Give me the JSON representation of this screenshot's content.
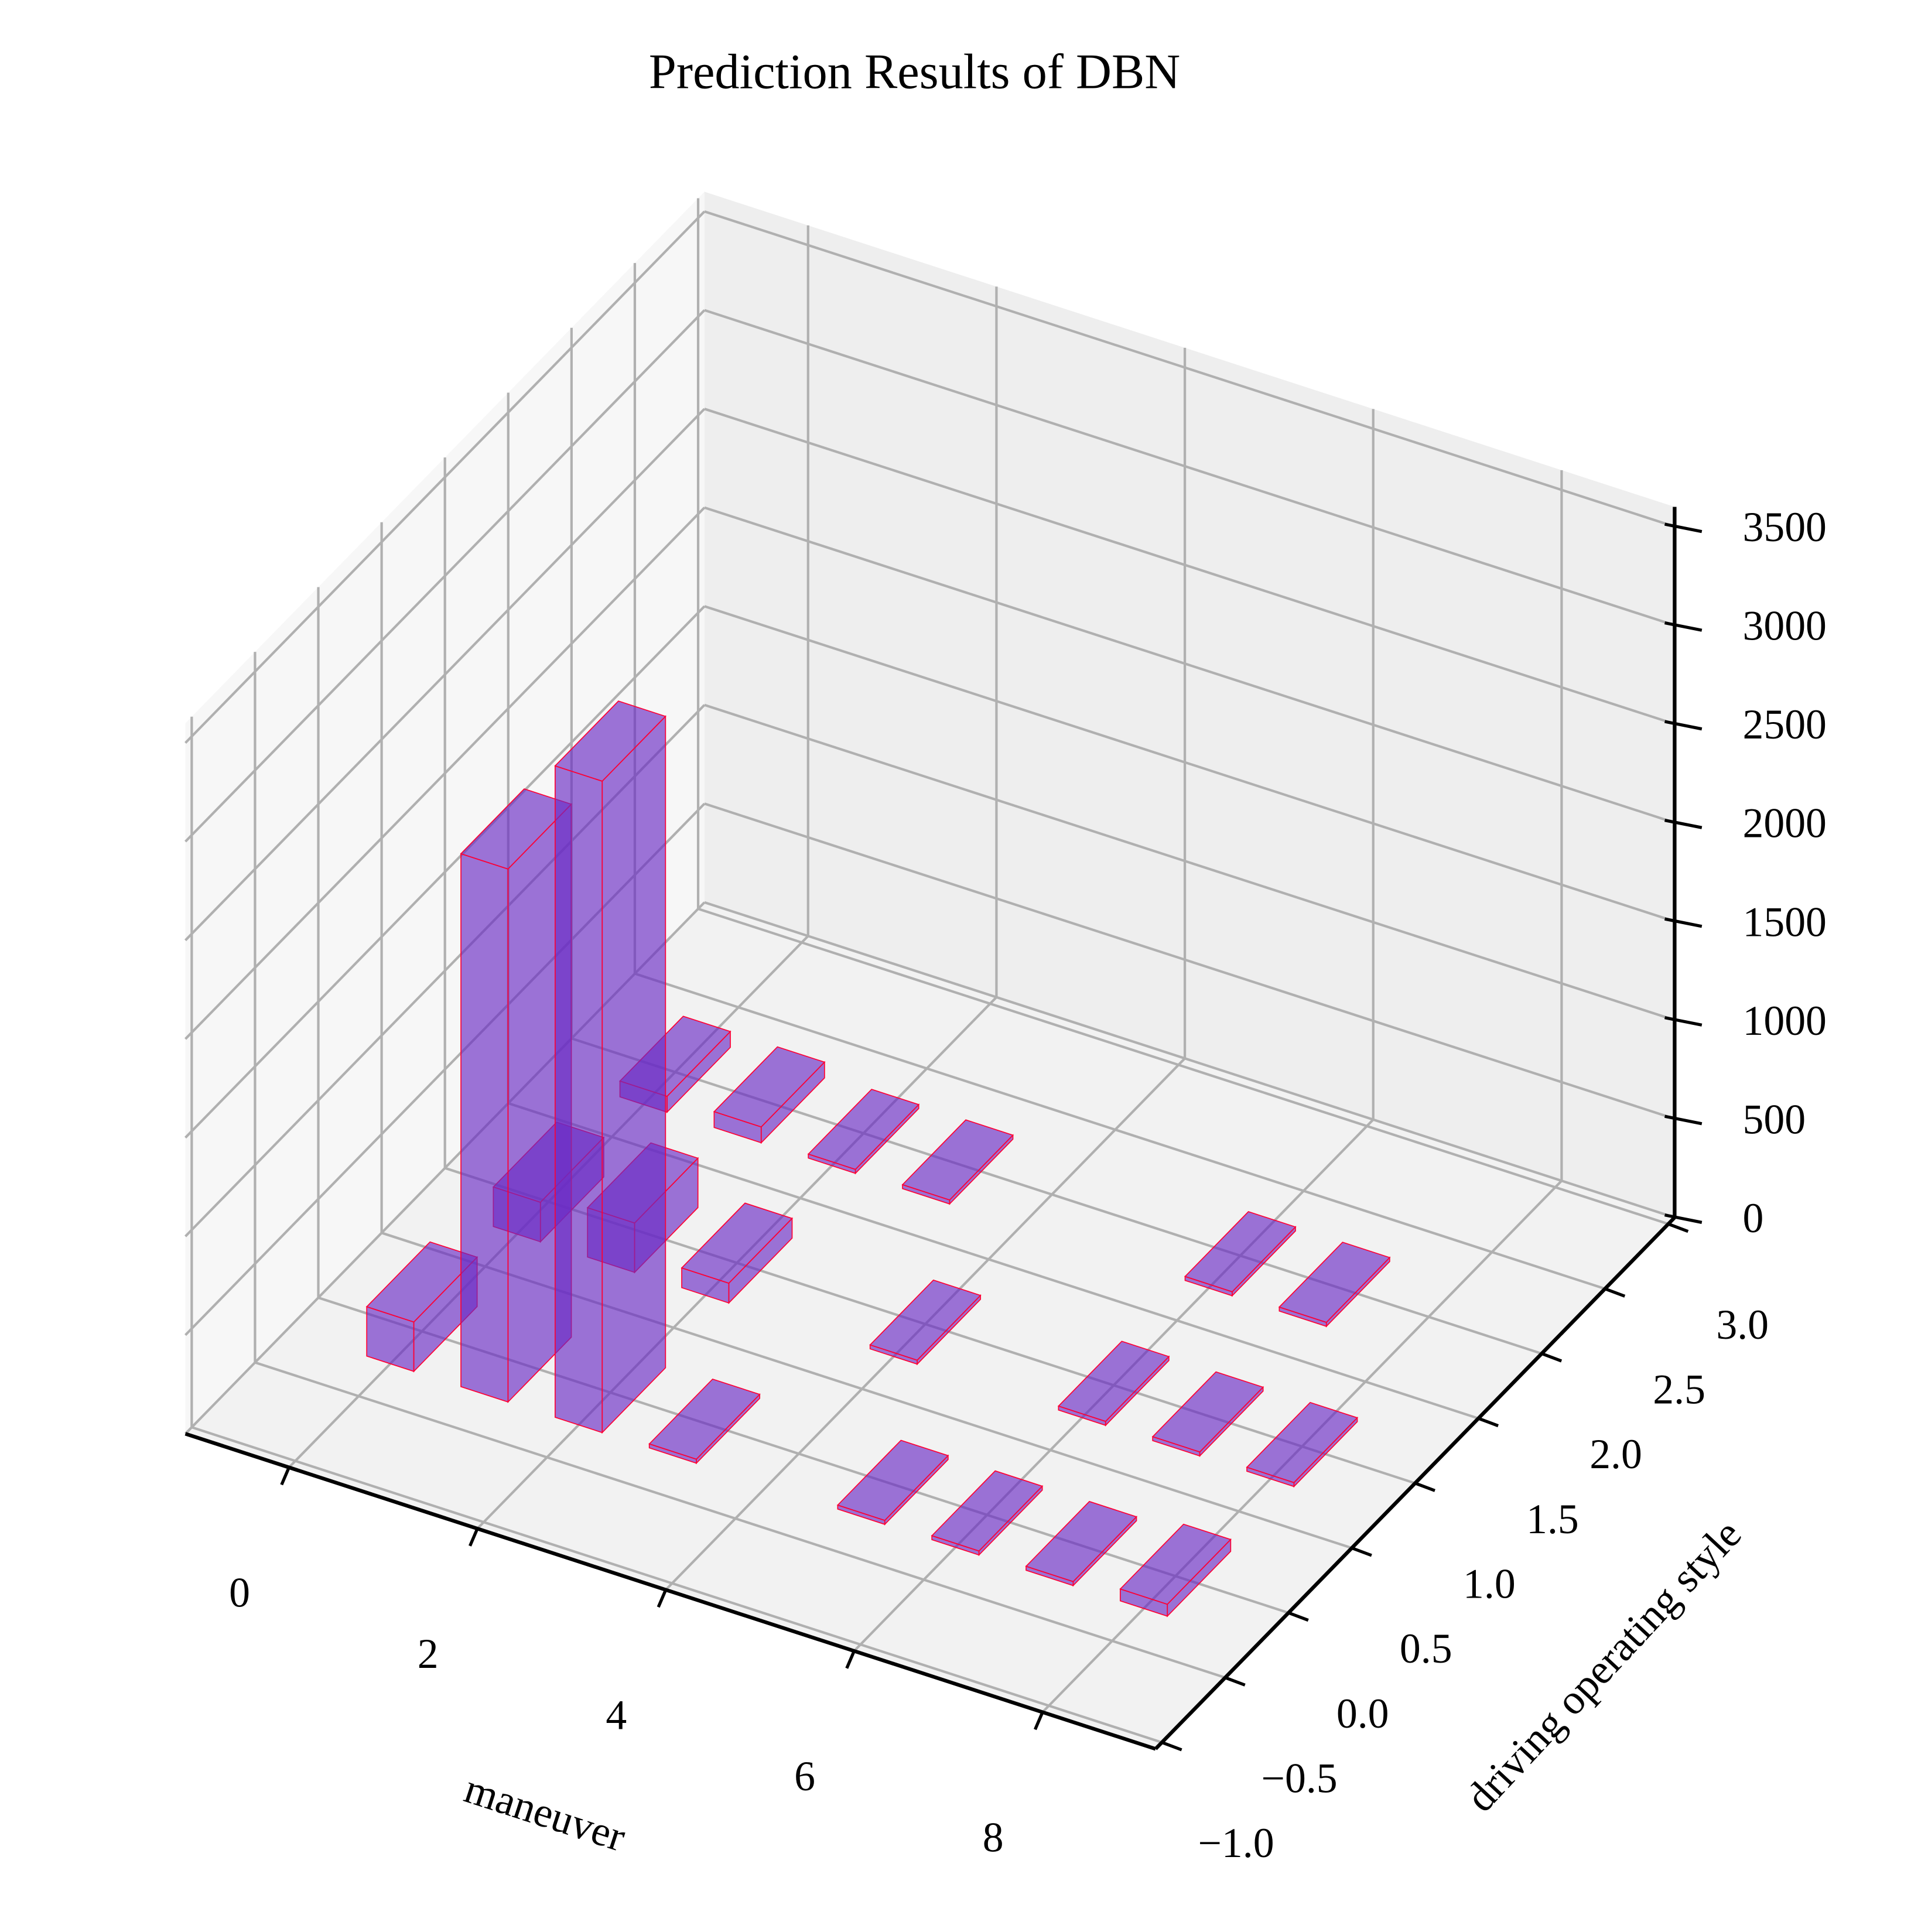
{
  "chart_data": {
    "type": "bar3d",
    "title": "Prediction Results of DBN",
    "xlabel": "maneuver",
    "ylabel": "driving operating style",
    "x": [
      0,
      1,
      2,
      3,
      5,
      6,
      7,
      8,
      0,
      1,
      2,
      4,
      6,
      7,
      8,
      0,
      1,
      2,
      3,
      6,
      7
    ],
    "y": [
      0,
      0,
      0,
      0,
      0,
      0,
      0,
      0,
      1,
      1,
      1,
      1,
      1,
      1,
      1,
      2,
      2,
      2,
      2,
      2,
      2
    ],
    "values": [
      250,
      2700,
      3300,
      20,
      20,
      20,
      20,
      60,
      200,
      250,
      100,
      20,
      20,
      20,
      20,
      80,
      80,
      20,
      20,
      20,
      20
    ],
    "color": "#6a2bc4",
    "edgecolor": "#ff0033",
    "xlim": [
      -1.1,
      9.2
    ],
    "ylim": [
      -1.05,
      3.05
    ],
    "zlim": [
      0,
      3600
    ],
    "xticks": [
      0,
      2,
      4,
      6,
      8
    ],
    "yticks": [
      {
        "value": -1,
        "label": "−1.0"
      },
      {
        "value": -0.5,
        "label": "−0.5"
      },
      {
        "value": 0,
        "label": "0.0"
      },
      0.5,
      {
        "value": 1,
        "label": "1.0"
      },
      1.5,
      {
        "value": 2,
        "label": "2.0"
      },
      2.5,
      {
        "value": 3,
        "label": "3.0"
      }
    ],
    "zticks": [
      0,
      500,
      1000,
      1500,
      2000,
      2500,
      3000,
      3500
    ],
    "grid": true
  }
}
